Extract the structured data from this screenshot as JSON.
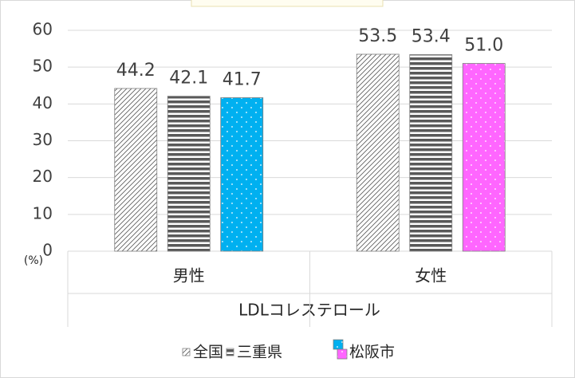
{
  "chart_data": {
    "type": "bar",
    "categories": [
      "男性",
      "女性"
    ],
    "category_group": "LDLコレステロール",
    "y_unit": "(%)",
    "ylim": [
      0,
      60
    ],
    "yticks": [
      0,
      10,
      20,
      30,
      40,
      50,
      60
    ],
    "grid": true,
    "legend": "bottom",
    "series": [
      {
        "name": "全国",
        "color": "#ffffff",
        "pattern": "diagonal",
        "values": [
          44.2,
          53.5
        ],
        "value_labels": [
          "44.2",
          "53.5"
        ]
      },
      {
        "name": "三重県",
        "color": "#ffffff",
        "pattern": "horizontal",
        "values": [
          42.1,
          53.4
        ],
        "value_labels": [
          "42.1",
          "53.4"
        ]
      },
      {
        "name": "松阪市",
        "color": "#00b0f0",
        "point_colors": [
          "#00b0f0",
          "#ff66ff"
        ],
        "pattern": "dots",
        "values": [
          41.7,
          51.0
        ],
        "value_labels": [
          "41.7",
          "51.0"
        ]
      }
    ]
  }
}
